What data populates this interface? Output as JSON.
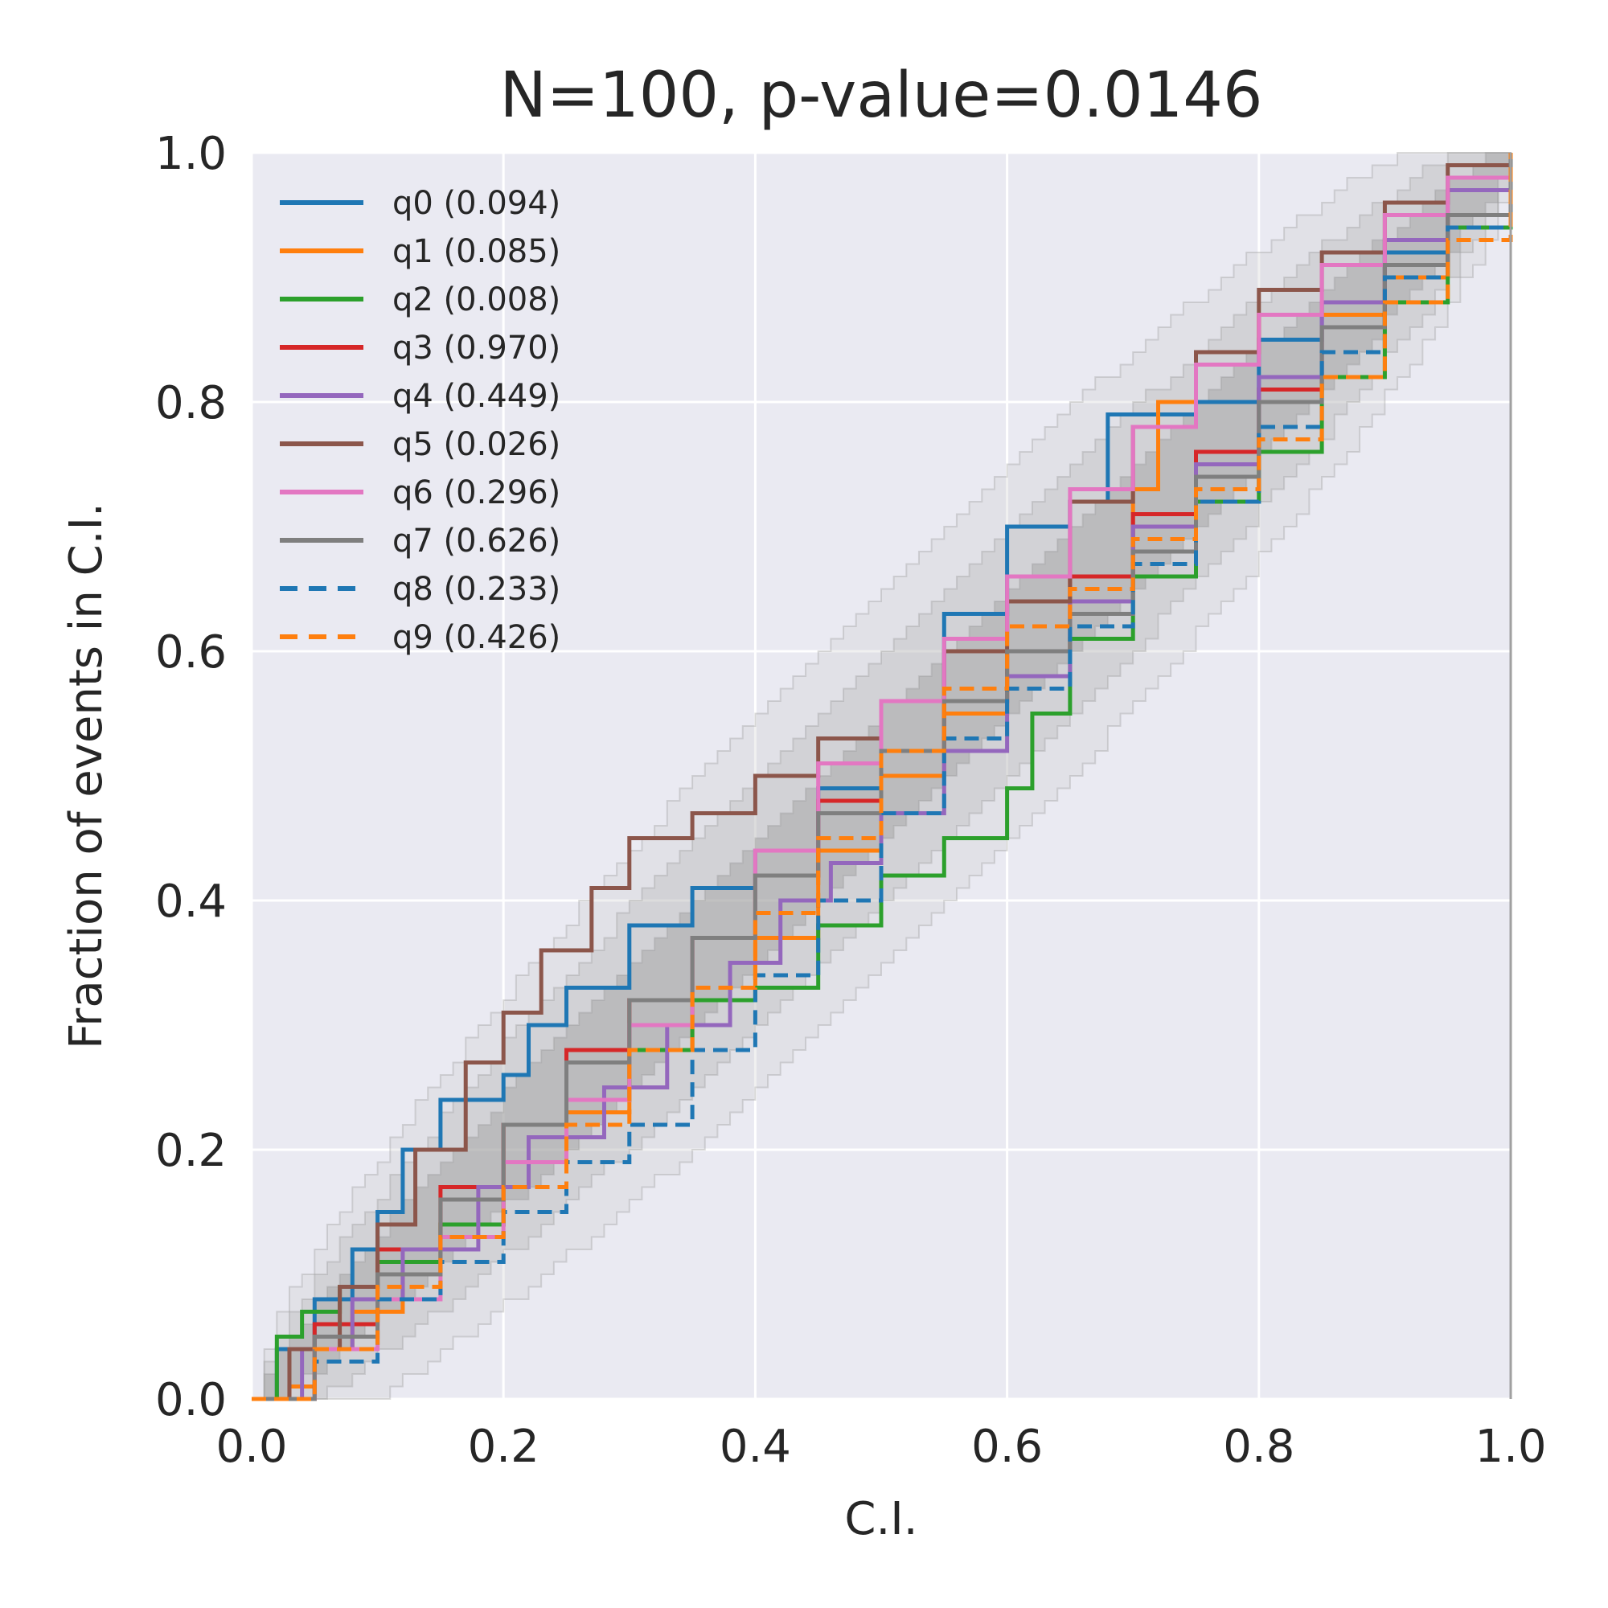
{
  "chart_data": {
    "type": "line",
    "title": "N=100, p-value=0.0146",
    "xlabel": "C.I.",
    "ylabel": "Fraction of events in C.I.",
    "xlim": [
      0,
      1
    ],
    "ylim": [
      0,
      1
    ],
    "xticks": [
      "0.0",
      "0.2",
      "0.4",
      "0.6",
      "0.8",
      "1.0"
    ],
    "yticks": [
      "0.0",
      "0.2",
      "0.4",
      "0.6",
      "0.8",
      "1.0"
    ],
    "grid": true,
    "legend_position": "top-left",
    "background": "#eaeaf2",
    "confidence_bands": [
      {
        "level": "1-sigma",
        "color": "#a0a0a0",
        "opacity": 0.45
      },
      {
        "level": "2-sigma",
        "color": "#b8b8b8",
        "opacity": 0.35
      },
      {
        "level": "3-sigma",
        "color": "#cccccc",
        "opacity": 0.3
      }
    ],
    "series": [
      {
        "name": "q0 (0.094)",
        "color": "#1f77b4",
        "style": "solid",
        "x": [
          0,
          0.02,
          0.05,
          0.08,
          0.1,
          0.12,
          0.15,
          0.18,
          0.2,
          0.22,
          0.25,
          0.3,
          0.35,
          0.4,
          0.45,
          0.5,
          0.55,
          0.6,
          0.65,
          0.68,
          0.72,
          0.75,
          0.8,
          0.85,
          0.9,
          0.95,
          1.0
        ],
        "y": [
          0,
          0.04,
          0.08,
          0.12,
          0.15,
          0.2,
          0.24,
          0.24,
          0.26,
          0.3,
          0.33,
          0.38,
          0.41,
          0.44,
          0.49,
          0.56,
          0.63,
          0.7,
          0.72,
          0.79,
          0.79,
          0.8,
          0.85,
          0.88,
          0.92,
          0.95,
          1.0
        ]
      },
      {
        "name": "q1 (0.085)",
        "color": "#ff7f0e",
        "style": "solid",
        "x": [
          0,
          0.03,
          0.05,
          0.08,
          0.12,
          0.15,
          0.2,
          0.25,
          0.3,
          0.35,
          0.4,
          0.45,
          0.5,
          0.55,
          0.6,
          0.65,
          0.7,
          0.72,
          0.75,
          0.8,
          0.85,
          0.9,
          0.95,
          1.0
        ],
        "y": [
          0,
          0.01,
          0.04,
          0.07,
          0.1,
          0.14,
          0.19,
          0.23,
          0.28,
          0.32,
          0.37,
          0.44,
          0.5,
          0.55,
          0.6,
          0.66,
          0.73,
          0.8,
          0.84,
          0.87,
          0.87,
          0.9,
          0.95,
          1.0
        ]
      },
      {
        "name": "q2 (0.008)",
        "color": "#2ca02c",
        "style": "solid",
        "x": [
          0,
          0.02,
          0.04,
          0.07,
          0.1,
          0.15,
          0.2,
          0.25,
          0.3,
          0.35,
          0.4,
          0.45,
          0.5,
          0.55,
          0.6,
          0.62,
          0.65,
          0.7,
          0.75,
          0.8,
          0.85,
          0.9,
          0.95,
          1.0
        ],
        "y": [
          0,
          0.05,
          0.07,
          0.09,
          0.11,
          0.14,
          0.19,
          0.24,
          0.28,
          0.32,
          0.33,
          0.38,
          0.42,
          0.45,
          0.49,
          0.55,
          0.61,
          0.66,
          0.72,
          0.76,
          0.82,
          0.88,
          0.94,
          1.0
        ]
      },
      {
        "name": "q3 (0.970)",
        "color": "#d62728",
        "style": "solid",
        "x": [
          0,
          0.05,
          0.1,
          0.15,
          0.2,
          0.25,
          0.3,
          0.35,
          0.4,
          0.45,
          0.5,
          0.55,
          0.6,
          0.65,
          0.7,
          0.75,
          0.8,
          0.85,
          0.9,
          0.95,
          1.0
        ],
        "y": [
          0,
          0.06,
          0.12,
          0.17,
          0.22,
          0.28,
          0.32,
          0.37,
          0.42,
          0.48,
          0.52,
          0.56,
          0.6,
          0.66,
          0.71,
          0.76,
          0.81,
          0.86,
          0.91,
          0.95,
          1.0
        ]
      },
      {
        "name": "q4 (0.449)",
        "color": "#9467bd",
        "style": "solid",
        "x": [
          0,
          0.04,
          0.08,
          0.12,
          0.18,
          0.22,
          0.28,
          0.33,
          0.38,
          0.42,
          0.46,
          0.5,
          0.55,
          0.6,
          0.65,
          0.7,
          0.75,
          0.8,
          0.85,
          0.9,
          0.95,
          1.0
        ],
        "y": [
          0,
          0.04,
          0.08,
          0.12,
          0.17,
          0.21,
          0.25,
          0.3,
          0.35,
          0.4,
          0.43,
          0.47,
          0.52,
          0.58,
          0.64,
          0.7,
          0.75,
          0.82,
          0.88,
          0.93,
          0.97,
          1.0
        ]
      },
      {
        "name": "q5 (0.026)",
        "color": "#8c564b",
        "style": "solid",
        "x": [
          0,
          0.03,
          0.07,
          0.1,
          0.13,
          0.17,
          0.2,
          0.23,
          0.27,
          0.3,
          0.35,
          0.4,
          0.45,
          0.5,
          0.55,
          0.6,
          0.65,
          0.7,
          0.75,
          0.8,
          0.85,
          0.9,
          0.95,
          1.0
        ],
        "y": [
          0,
          0.04,
          0.09,
          0.14,
          0.2,
          0.27,
          0.31,
          0.36,
          0.41,
          0.45,
          0.47,
          0.5,
          0.53,
          0.56,
          0.6,
          0.64,
          0.72,
          0.78,
          0.84,
          0.89,
          0.92,
          0.96,
          0.99,
          1.0
        ]
      },
      {
        "name": "q6 (0.296)",
        "color": "#e377c2",
        "style": "solid",
        "x": [
          0,
          0.05,
          0.1,
          0.15,
          0.2,
          0.25,
          0.3,
          0.35,
          0.4,
          0.45,
          0.5,
          0.55,
          0.6,
          0.65,
          0.7,
          0.75,
          0.8,
          0.85,
          0.9,
          0.95,
          1.0
        ],
        "y": [
          0,
          0.04,
          0.08,
          0.13,
          0.19,
          0.24,
          0.3,
          0.37,
          0.44,
          0.51,
          0.56,
          0.61,
          0.66,
          0.73,
          0.78,
          0.83,
          0.87,
          0.91,
          0.95,
          0.98,
          1.0
        ]
      },
      {
        "name": "q7 (0.626)",
        "color": "#7f7f7f",
        "style": "solid",
        "x": [
          0,
          0.05,
          0.1,
          0.15,
          0.2,
          0.25,
          0.3,
          0.35,
          0.4,
          0.45,
          0.5,
          0.55,
          0.6,
          0.65,
          0.7,
          0.75,
          0.8,
          0.85,
          0.9,
          0.95,
          1.0
        ],
        "y": [
          0,
          0.05,
          0.1,
          0.16,
          0.22,
          0.27,
          0.32,
          0.37,
          0.42,
          0.47,
          0.52,
          0.56,
          0.6,
          0.63,
          0.68,
          0.74,
          0.8,
          0.86,
          0.91,
          0.95,
          1.0
        ]
      },
      {
        "name": "q8 (0.233)",
        "color": "#1f77b4",
        "style": "dashed",
        "x": [
          0,
          0.05,
          0.1,
          0.15,
          0.2,
          0.25,
          0.3,
          0.35,
          0.4,
          0.45,
          0.5,
          0.55,
          0.6,
          0.65,
          0.7,
          0.75,
          0.8,
          0.85,
          0.9,
          0.95,
          1.0
        ],
        "y": [
          0,
          0.03,
          0.08,
          0.11,
          0.15,
          0.19,
          0.22,
          0.28,
          0.34,
          0.4,
          0.47,
          0.53,
          0.57,
          0.62,
          0.67,
          0.72,
          0.78,
          0.84,
          0.9,
          0.94,
          1.0
        ]
      },
      {
        "name": "q9 (0.426)",
        "color": "#ff7f0e",
        "style": "dashed",
        "x": [
          0,
          0.05,
          0.1,
          0.15,
          0.2,
          0.25,
          0.3,
          0.35,
          0.4,
          0.45,
          0.5,
          0.55,
          0.6,
          0.65,
          0.7,
          0.75,
          0.8,
          0.85,
          0.9,
          0.95,
          1.0
        ],
        "y": [
          0,
          0.04,
          0.09,
          0.13,
          0.17,
          0.22,
          0.28,
          0.33,
          0.39,
          0.45,
          0.52,
          0.57,
          0.62,
          0.65,
          0.69,
          0.73,
          0.77,
          0.82,
          0.88,
          0.93,
          1.0
        ]
      }
    ]
  }
}
